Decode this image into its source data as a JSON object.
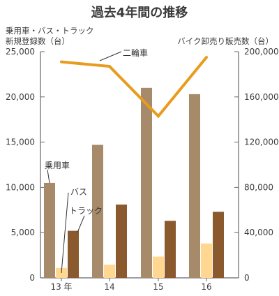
{
  "chart_data": {
    "type": "bar",
    "title": "過去4年間の推移",
    "left_axis_label_line1": "乗用車・バス・トラック",
    "left_axis_label_line2": "新規登録数（台）",
    "right_axis_label": "バイク卸売り販売数（台）",
    "categories": [
      "13 年",
      "14",
      "15",
      "16"
    ],
    "left_axis_ticks": [
      "0",
      "5,000",
      "10,000",
      "15,000",
      "20,000",
      "25,000"
    ],
    "right_axis_ticks": [
      "0",
      "40,000",
      "80,000",
      "120,000",
      "160,000",
      "200,000"
    ],
    "ylim_left": [
      0,
      25000
    ],
    "ylim_right": [
      0,
      200000
    ],
    "series": [
      {
        "name": "乗用車",
        "axis": "left",
        "type": "bar",
        "color": "#a68a69",
        "values": [
          10500,
          14700,
          21000,
          20300
        ]
      },
      {
        "name": "バス",
        "axis": "left",
        "type": "bar",
        "color": "#ffd790",
        "values": [
          1100,
          1450,
          2350,
          3800
        ]
      },
      {
        "name": "トラック",
        "axis": "left",
        "type": "bar",
        "color": "#8a5a2e",
        "values": [
          5200,
          8100,
          6300,
          7300
        ]
      },
      {
        "name": "二輪車",
        "axis": "right",
        "type": "line",
        "color": "#e89b1c",
        "values": [
          191000,
          187000,
          143000,
          195000
        ]
      }
    ],
    "legend": "inline labels",
    "grid": false
  }
}
